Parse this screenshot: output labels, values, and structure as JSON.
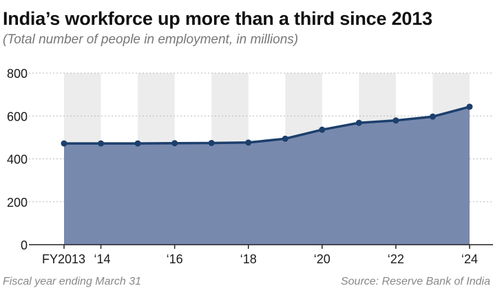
{
  "colors": {
    "area": "#7889ae",
    "line": "#1c3f6c",
    "band": "#ececec",
    "grid": "#b8b8b8",
    "axis": "#222222"
  },
  "title": "India’s workforce up more than a third since 2013",
  "subtitle": "(Total number of people in employment, in millions)",
  "footer": {
    "note": "Fiscal year ending March 31",
    "source": "Source: Reserve Bank of India"
  },
  "chart_data": {
    "type": "area",
    "title": "India’s workforce up more than a third since 2013",
    "subtitle": "(Total number of people in employment, in millions)",
    "x": [
      2013,
      2014,
      2015,
      2016,
      2017,
      2018,
      2019,
      2020,
      2021,
      2022,
      2023,
      2024
    ],
    "series": [
      {
        "values": [
          472,
          472,
          472,
          473,
          474,
          476,
          494,
          536,
          568,
          579,
          597,
          643
        ]
      }
    ],
    "xlim": [
      2013,
      2024
    ],
    "ylim": [
      0,
      800
    ],
    "yticks": [
      0,
      200,
      400,
      600,
      800
    ],
    "xticks": [
      {
        "x": 2013,
        "label": "FY2013"
      },
      {
        "x": 2014,
        "label": "‘14"
      },
      {
        "x": 2016,
        "label": "‘16"
      },
      {
        "x": 2018,
        "label": "‘18"
      },
      {
        "x": 2020,
        "label": "‘20"
      },
      {
        "x": 2022,
        "label": "‘22"
      },
      {
        "x": 2024,
        "label": "‘24"
      }
    ],
    "alternating_bands": true,
    "grid": "horizontal dotted"
  }
}
